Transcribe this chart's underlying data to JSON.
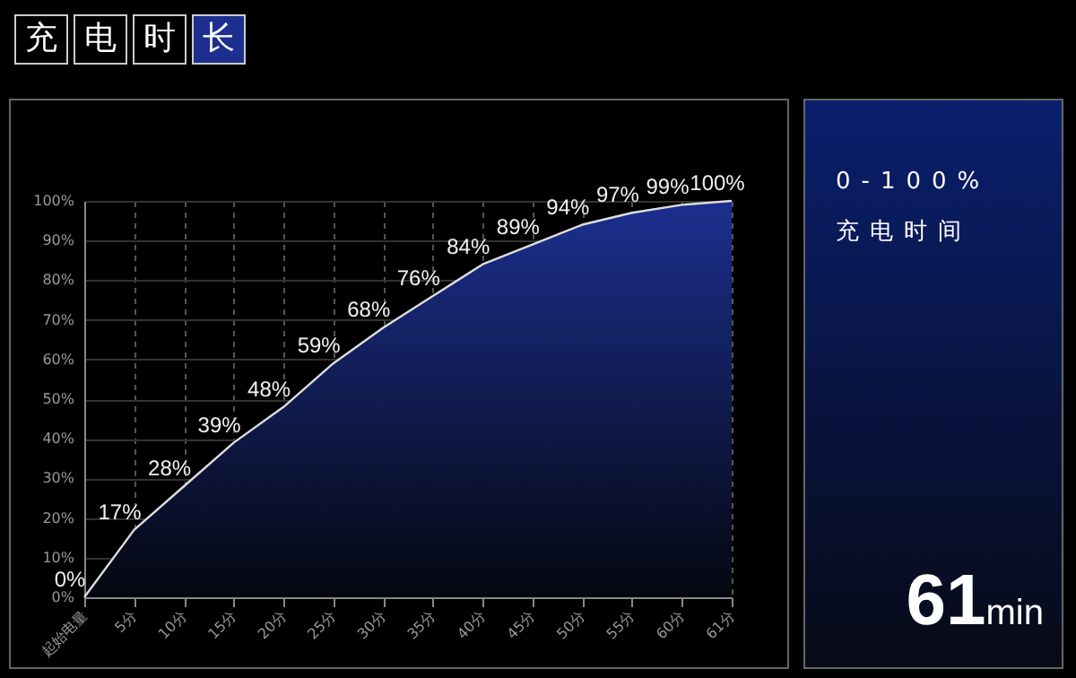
{
  "chart_data": [
    {
      "type": "area",
      "title": "充电时长",
      "categories": [
        "起始电量",
        "5分",
        "10分",
        "15分",
        "20分",
        "25分",
        "30分",
        "35分",
        "40分",
        "45分",
        "50分",
        "55分",
        "60分",
        "61分"
      ],
      "series": [
        {
          "color": "#1c2f8f",
          "values": [
            0,
            17,
            28,
            39,
            48,
            59,
            68,
            76,
            84,
            89,
            94,
            97,
            99,
            100
          ],
          "value_labels": [
            "0%",
            "17%",
            "28%",
            "39%",
            "48%",
            "59%",
            "68%",
            "76%",
            "84%",
            "89%",
            "94%",
            "97%",
            "99%",
            "100%"
          ]
        }
      ],
      "ylim": [
        0,
        100
      ],
      "yticks": [
        {
          "value": 0,
          "label": "0%"
        },
        {
          "value": 10,
          "label": "10%"
        },
        {
          "value": 20,
          "label": "20%"
        },
        {
          "value": 30,
          "label": "30%"
        },
        {
          "value": 40,
          "label": "40%"
        },
        {
          "value": 50,
          "label": "50%"
        },
        {
          "value": 60,
          "label": "60%"
        },
        {
          "value": 70,
          "label": "70%"
        },
        {
          "value": 80,
          "label": "80%"
        },
        {
          "value": 90,
          "label": "90%"
        },
        {
          "value": 100,
          "label": "100%"
        }
      ],
      "grid": true
    },
    {
      "type": "other",
      "annotations": [
        "0-100%",
        "充电时间",
        "61min"
      ]
    }
  ]
}
